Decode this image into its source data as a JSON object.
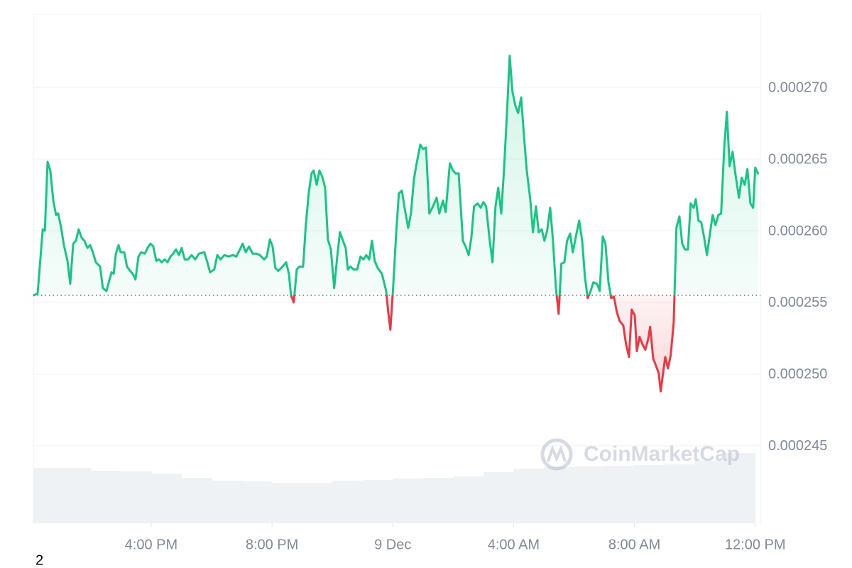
{
  "chart_data": {
    "type": "line",
    "xlim": [
      12.1,
      36.1
    ],
    "ylim": [
      0.0002396,
      0.0002751
    ],
    "xticks": [
      {
        "value": 16,
        "label": "4:00 PM"
      },
      {
        "value": 20,
        "label": "8:00 PM"
      },
      {
        "value": 24,
        "label": "9 Dec"
      },
      {
        "value": 28,
        "label": "4:00 AM"
      },
      {
        "value": 32,
        "label": "8:00 AM"
      },
      {
        "value": 36,
        "label": "12:00 PM"
      }
    ],
    "yticks": [
      0.000245,
      {
        "value": 0.00025,
        "label": "0.000250"
      },
      0.000255,
      {
        "value": 0.00026,
        "label": "0.000260"
      },
      0.000265,
      {
        "value": 0.00027,
        "label": "0.000270"
      }
    ],
    "grid": true,
    "baseline": 0.0002555,
    "up_color": "#16c784",
    "down_color": "#ea3943",
    "watermark": "CoinMarketCap",
    "footnote": "2",
    "x": [
      12.1,
      12.24,
      12.41,
      12.48,
      12.57,
      12.66,
      12.76,
      12.85,
      12.92,
      13.02,
      13.11,
      13.23,
      13.32,
      13.42,
      13.51,
      13.6,
      13.7,
      13.79,
      13.89,
      13.98,
      14.07,
      14.17,
      14.31,
      14.4,
      14.52,
      14.61,
      14.69,
      14.76,
      14.83,
      14.92,
      14.99,
      15.11,
      15.2,
      15.3,
      15.39,
      15.48,
      15.58,
      15.67,
      15.79,
      15.88,
      15.98,
      16.07,
      16.17,
      16.26,
      16.35,
      16.45,
      16.54,
      16.64,
      16.73,
      16.82,
      16.92,
      17.01,
      17.11,
      17.22,
      17.34,
      17.46,
      17.58,
      17.76,
      17.86,
      17.95,
      18.09,
      18.19,
      18.3,
      18.42,
      18.56,
      18.7,
      18.82,
      18.94,
      19.03,
      19.13,
      19.24,
      19.36,
      19.48,
      19.6,
      19.74,
      19.83,
      19.93,
      20.02,
      20.11,
      20.21,
      20.35,
      20.47,
      20.56,
      20.63,
      20.72,
      20.82,
      20.91,
      21.03,
      21.12,
      21.22,
      21.31,
      21.38,
      21.48,
      21.57,
      21.66,
      21.76,
      21.85,
      21.95,
      22.06,
      22.16,
      22.25,
      22.35,
      22.44,
      22.51,
      22.6,
      22.7,
      22.82,
      22.93,
      23.03,
      23.12,
      23.22,
      23.31,
      23.4,
      23.5,
      23.64,
      23.78,
      23.85,
      23.92,
      24.01,
      24.11,
      24.2,
      24.3,
      24.39,
      24.51,
      24.6,
      24.7,
      24.79,
      24.91,
      25.0,
      25.1,
      25.21,
      25.33,
      25.45,
      25.54,
      25.66,
      25.75,
      25.89,
      25.99,
      26.08,
      26.18,
      26.32,
      26.41,
      26.51,
      26.6,
      26.69,
      26.81,
      26.91,
      27.0,
      27.09,
      27.21,
      27.3,
      27.4,
      27.49,
      27.59,
      27.68,
      27.78,
      27.87,
      27.96,
      28.06,
      28.15,
      28.25,
      28.34,
      28.43,
      28.55,
      28.64,
      28.74,
      28.83,
      28.93,
      29.02,
      29.11,
      29.21,
      29.3,
      29.4,
      29.49,
      29.58,
      29.68,
      29.77,
      29.87,
      29.96,
      30.08,
      30.17,
      30.27,
      30.36,
      30.45,
      30.55,
      30.64,
      30.76,
      30.85,
      30.95,
      31.04,
      31.14,
      31.23,
      31.32,
      31.42,
      31.51,
      31.63,
      31.72,
      31.82,
      31.91,
      32.01,
      32.08,
      32.17,
      32.26,
      32.36,
      32.45,
      32.52,
      32.62,
      32.71,
      32.8,
      32.87,
      32.95,
      33.02,
      33.11,
      33.2,
      33.3,
      33.39,
      33.49,
      33.58,
      33.67,
      33.77,
      33.86,
      33.96,
      34.03,
      34.12,
      34.21,
      34.31,
      34.4,
      34.5,
      34.59,
      34.68,
      34.78,
      34.87,
      34.97,
      35.06,
      35.15,
      35.25,
      35.34,
      35.46,
      35.55,
      35.65,
      35.74,
      35.84,
      35.93,
      36.0,
      36.09
    ],
    "values": [
      0.0002555,
      0.0002556,
      0.0002601,
      0.00026,
      0.0002648,
      0.0002642,
      0.0002621,
      0.0002611,
      0.0002612,
      0.0002602,
      0.000259,
      0.0002579,
      0.0002563,
      0.0002591,
      0.0002593,
      0.0002601,
      0.0002595,
      0.0002593,
      0.0002588,
      0.000259,
      0.0002585,
      0.0002578,
      0.0002575,
      0.000256,
      0.0002558,
      0.0002565,
      0.0002571,
      0.000257,
      0.0002584,
      0.000259,
      0.0002585,
      0.0002585,
      0.0002575,
      0.0002572,
      0.000257,
      0.0002566,
      0.0002582,
      0.0002585,
      0.0002584,
      0.0002588,
      0.0002591,
      0.0002589,
      0.0002579,
      0.000258,
      0.0002578,
      0.000258,
      0.0002578,
      0.0002582,
      0.0002584,
      0.0002587,
      0.0002583,
      0.0002588,
      0.000258,
      0.000258,
      0.0002583,
      0.000258,
      0.0002584,
      0.0002585,
      0.0002578,
      0.0002571,
      0.0002573,
      0.0002583,
      0.000258,
      0.0002583,
      0.0002582,
      0.0002583,
      0.0002582,
      0.0002587,
      0.0002591,
      0.0002585,
      0.0002589,
      0.0002584,
      0.0002584,
      0.0002583,
      0.000258,
      0.0002582,
      0.0002594,
      0.0002589,
      0.0002574,
      0.0002572,
      0.0002575,
      0.0002578,
      0.000257,
      0.0002555,
      0.000255,
      0.0002573,
      0.0002575,
      0.0002575,
      0.0002604,
      0.0002627,
      0.000264,
      0.0002642,
      0.0002632,
      0.0002642,
      0.0002638,
      0.000263,
      0.0002594,
      0.0002587,
      0.000256,
      0.0002582,
      0.0002599,
      0.0002593,
      0.0002588,
      0.0002573,
      0.0002575,
      0.0002573,
      0.0002573,
      0.0002582,
      0.000258,
      0.0002583,
      0.000258,
      0.0002593,
      0.0002579,
      0.0002574,
      0.000257,
      0.0002558,
      0.0002543,
      0.0002531,
      0.000256,
      0.0002598,
      0.0002626,
      0.0002628,
      0.0002616,
      0.0002602,
      0.0002612,
      0.0002636,
      0.0002647,
      0.000266,
      0.0002657,
      0.0002658,
      0.0002612,
      0.0002617,
      0.0002623,
      0.0002612,
      0.0002621,
      0.0002613,
      0.0002647,
      0.0002642,
      0.000264,
      0.000264,
      0.0002593,
      0.0002589,
      0.0002583,
      0.0002595,
      0.0002617,
      0.0002619,
      0.0002616,
      0.000262,
      0.0002617,
      0.0002593,
      0.0002578,
      0.0002617,
      0.000263,
      0.0002612,
      0.0002642,
      0.0002682,
      0.0002722,
      0.0002697,
      0.0002687,
      0.0002682,
      0.0002693,
      0.0002667,
      0.0002643,
      0.0002622,
      0.0002599,
      0.0002617,
      0.0002599,
      0.0002601,
      0.0002593,
      0.00026,
      0.0002616,
      0.0002594,
      0.000256,
      0.0002542,
      0.0002577,
      0.0002578,
      0.0002593,
      0.0002598,
      0.0002585,
      0.0002598,
      0.0002607,
      0.0002593,
      0.0002568,
      0.0002553,
      0.0002558,
      0.0002564,
      0.0002563,
      0.0002558,
      0.0002596,
      0.0002591,
      0.0002564,
      0.0002553,
      0.0002554,
      0.0002543,
      0.0002537,
      0.0002534,
      0.0002521,
      0.0002512,
      0.0002545,
      0.0002541,
      0.0002516,
      0.0002526,
      0.0002521,
      0.0002517,
      0.0002524,
      0.0002533,
      0.0002511,
      0.0002506,
      0.0002501,
      0.0002488,
      0.0002501,
      0.0002512,
      0.0002504,
      0.0002513,
      0.0002536,
      0.0002602,
      0.000261,
      0.0002591,
      0.0002587,
      0.0002587,
      0.0002619,
      0.0002616,
      0.0002622,
      0.0002607,
      0.0002606,
      0.0002595,
      0.0002583,
      0.0002598,
      0.0002611,
      0.0002604,
      0.0002611,
      0.0002612,
      0.0002657,
      0.0002683,
      0.0002645,
      0.0002655,
      0.000264,
      0.0002623,
      0.0002637,
      0.0002632,
      0.0002643,
      0.0002619,
      0.0002616,
      0.0002644,
      0.000264
    ],
    "volume": {
      "color": "#eff2f5",
      "y2lim": [
        0,
        120
      ],
      "x": [
        12.5,
        13.5,
        14.5,
        15.5,
        16.5,
        17.5,
        18.5,
        19.5,
        20.5,
        21.5,
        22.5,
        23.5,
        24.5,
        25.5,
        26.5,
        27.5,
        28.5,
        29.5,
        30.5,
        31.5,
        32.5,
        33.5,
        34.5,
        35.5
      ],
      "values": [
        78,
        78,
        74,
        73,
        70,
        64,
        60,
        59,
        57,
        57,
        60,
        61,
        63,
        64,
        66,
        72,
        77,
        79,
        80,
        81,
        82,
        83,
        88,
        99
      ]
    }
  }
}
